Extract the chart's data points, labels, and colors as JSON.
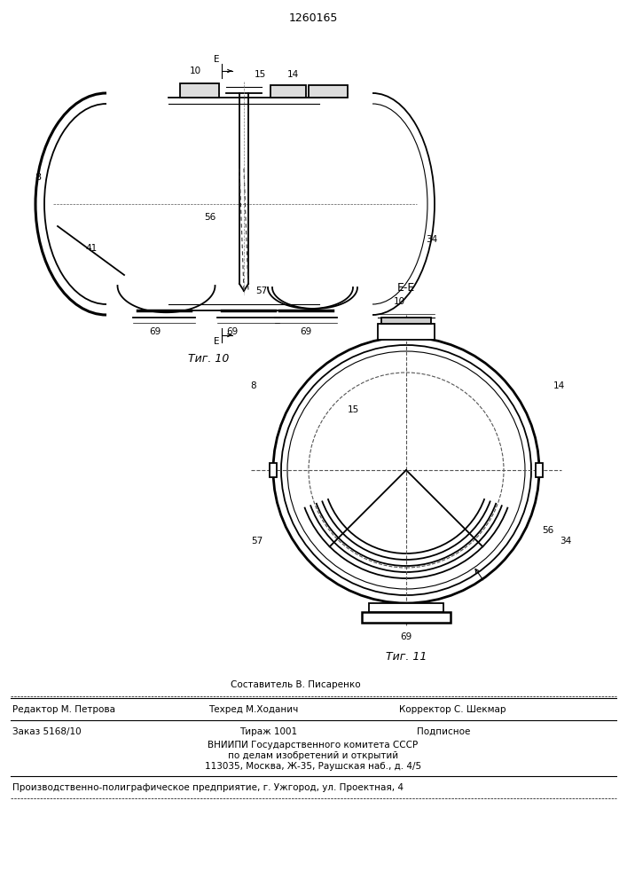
{
  "patent_number": "1260165",
  "bg_color": "#ffffff",
  "line_color": "#000000",
  "fig10_caption": "Τиг. 10",
  "fig11_caption": "Τиг. 11",
  "ee_label": "E-E",
  "footer": {
    "line1_left": "Редактор М. Петрова",
    "line1_center": "Техред М.Ходанич",
    "line1_center2": "Составитель В. Писаренко",
    "line1_right": "Корректор С. Шекмар",
    "line2_left": "Заказ 5168/10",
    "line2_center": "Тираж 1001",
    "line2_right": "Подписное",
    "line3": "ВНИИПИ Государственного комитета СССР",
    "line4": "по делам изобретений и открытий",
    "line5": "113035, Москва, Ж-35, Раушская наб., д. 4/5",
    "line6": "Производственно-полиграфическое предприятие, г. Ужгород, ул. Проектная, 4"
  }
}
